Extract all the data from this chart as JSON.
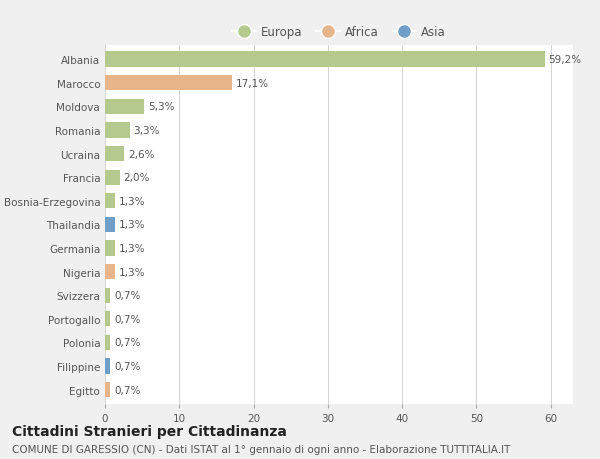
{
  "categories": [
    "Albania",
    "Marocco",
    "Moldova",
    "Romania",
    "Ucraina",
    "Francia",
    "Bosnia-Erzegovina",
    "Thailandia",
    "Germania",
    "Nigeria",
    "Svizzera",
    "Portogallo",
    "Polonia",
    "Filippine",
    "Egitto"
  ],
  "values": [
    59.2,
    17.1,
    5.3,
    3.3,
    2.6,
    2.0,
    1.3,
    1.3,
    1.3,
    1.3,
    0.7,
    0.7,
    0.7,
    0.7,
    0.7
  ],
  "labels": [
    "59,2%",
    "17,1%",
    "5,3%",
    "3,3%",
    "2,6%",
    "2,0%",
    "1,3%",
    "1,3%",
    "1,3%",
    "1,3%",
    "0,7%",
    "0,7%",
    "0,7%",
    "0,7%",
    "0,7%"
  ],
  "continents": [
    "Europa",
    "Africa",
    "Europa",
    "Europa",
    "Europa",
    "Europa",
    "Europa",
    "Asia",
    "Europa",
    "Africa",
    "Europa",
    "Europa",
    "Europa",
    "Asia",
    "Africa"
  ],
  "colors": {
    "Europa": "#b5c98e",
    "Africa": "#e8b48a",
    "Asia": "#6f9ec9"
  },
  "xlim": [
    0,
    63
  ],
  "xticks": [
    0,
    10,
    20,
    30,
    40,
    50,
    60
  ],
  "background_color": "#f0f0f0",
  "plot_bg_color": "#ffffff",
  "title": "Cittadini Stranieri per Cittadinanza",
  "subtitle": "COMUNE DI GARESSIO (CN) - Dati ISTAT al 1° gennaio di ogni anno - Elaborazione TUTTITALIA.IT",
  "title_fontsize": 10,
  "subtitle_fontsize": 7.5,
  "label_fontsize": 7.5,
  "tick_fontsize": 7.5,
  "legend_fontsize": 8.5,
  "bar_height": 0.65
}
